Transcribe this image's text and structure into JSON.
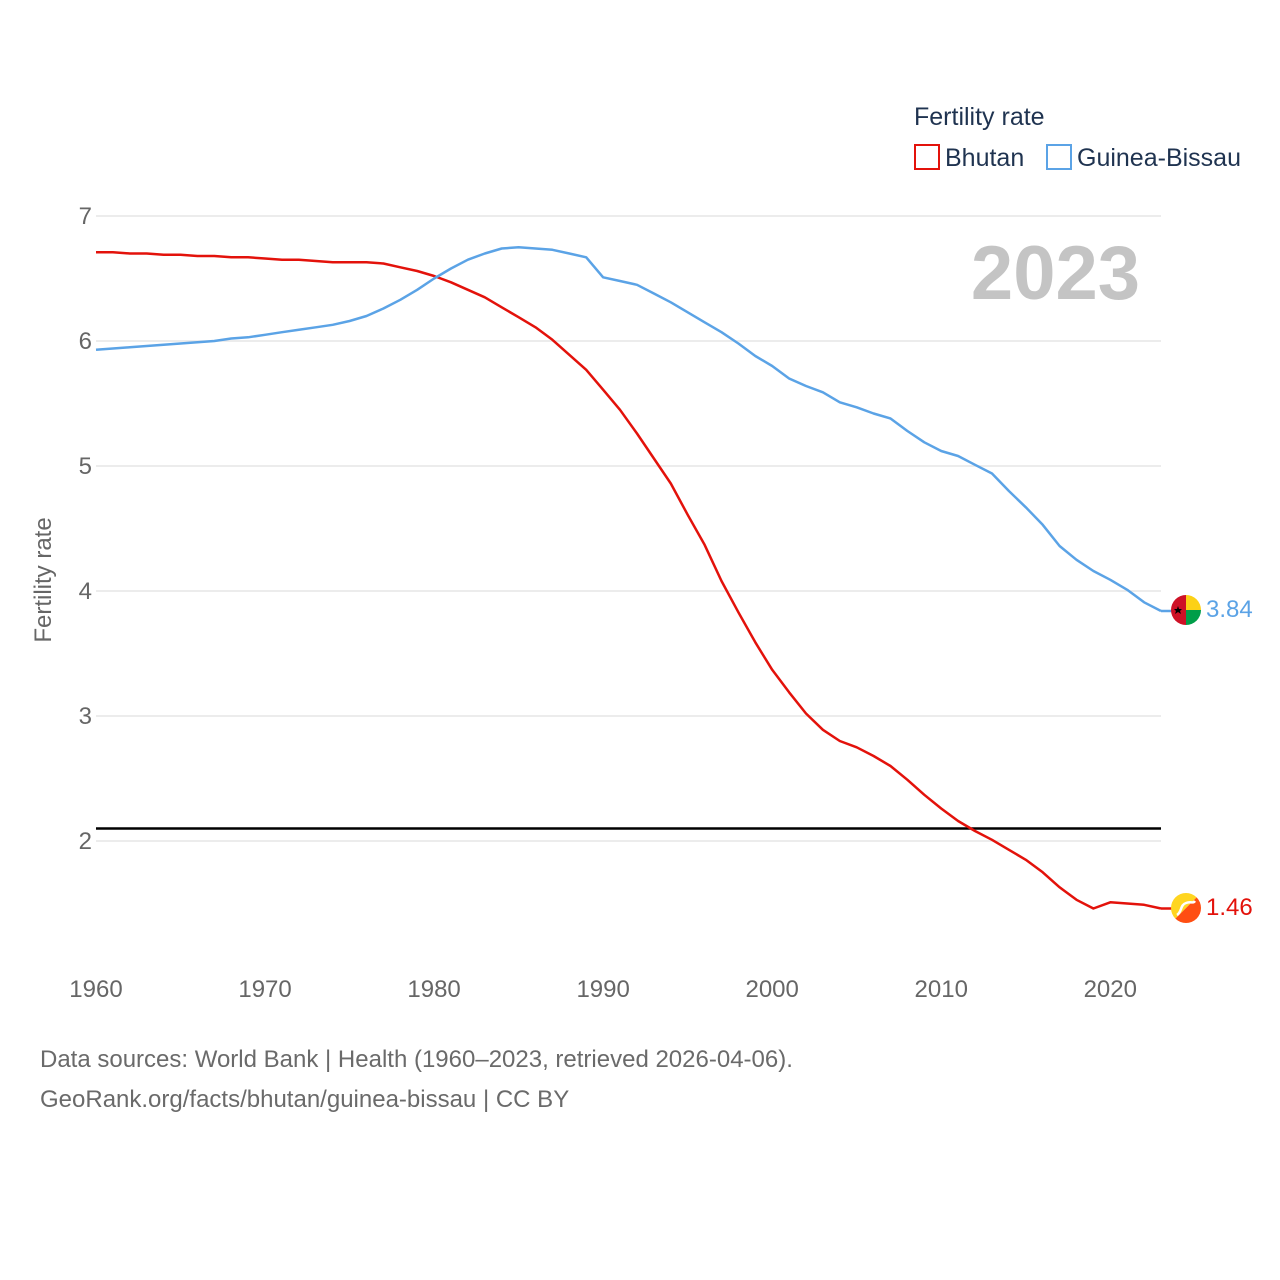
{
  "chart_data": {
    "type": "line",
    "title": "Fertility rate",
    "highlight_year": "2023",
    "xlabel": "",
    "ylabel": "Fertility rate",
    "xlim": [
      1960,
      2023
    ],
    "ylim": [
      1.0,
      7.0
    ],
    "x_ticks": [
      "1960",
      "1970",
      "1980",
      "1990",
      "2000",
      "2010",
      "2020"
    ],
    "y_ticks": [
      "2",
      "3",
      "4",
      "5",
      "6",
      "7"
    ],
    "reference_line": {
      "y": 2.1,
      "color": "#000000"
    },
    "legend_position": "top-right",
    "series": [
      {
        "name": "Bhutan",
        "color": "#e3120b",
        "end_label": "1.46",
        "points": [
          [
            1960,
            6.71
          ],
          [
            1961,
            6.71
          ],
          [
            1962,
            6.7
          ],
          [
            1963,
            6.7
          ],
          [
            1964,
            6.69
          ],
          [
            1965,
            6.69
          ],
          [
            1966,
            6.68
          ],
          [
            1967,
            6.68
          ],
          [
            1968,
            6.67
          ],
          [
            1969,
            6.67
          ],
          [
            1970,
            6.66
          ],
          [
            1971,
            6.65
          ],
          [
            1972,
            6.65
          ],
          [
            1973,
            6.64
          ],
          [
            1974,
            6.63
          ],
          [
            1975,
            6.63
          ],
          [
            1976,
            6.63
          ],
          [
            1977,
            6.62
          ],
          [
            1978,
            6.59
          ],
          [
            1979,
            6.56
          ],
          [
            1980,
            6.52
          ],
          [
            1981,
            6.47
          ],
          [
            1982,
            6.41
          ],
          [
            1983,
            6.35
          ],
          [
            1984,
            6.27
          ],
          [
            1985,
            6.19
          ],
          [
            1986,
            6.11
          ],
          [
            1987,
            6.01
          ],
          [
            1988,
            5.89
          ],
          [
            1989,
            5.77
          ],
          [
            1990,
            5.61
          ],
          [
            1991,
            5.45
          ],
          [
            1992,
            5.26
          ],
          [
            1993,
            5.06
          ],
          [
            1994,
            4.86
          ],
          [
            1995,
            4.61
          ],
          [
            1996,
            4.37
          ],
          [
            1997,
            4.08
          ],
          [
            1998,
            3.83
          ],
          [
            1999,
            3.59
          ],
          [
            2000,
            3.37
          ],
          [
            2001,
            3.19
          ],
          [
            2002,
            3.02
          ],
          [
            2003,
            2.89
          ],
          [
            2004,
            2.8
          ],
          [
            2005,
            2.75
          ],
          [
            2006,
            2.68
          ],
          [
            2007,
            2.6
          ],
          [
            2008,
            2.49
          ],
          [
            2009,
            2.37
          ],
          [
            2010,
            2.26
          ],
          [
            2011,
            2.16
          ],
          [
            2012,
            2.08
          ],
          [
            2013,
            2.01
          ],
          [
            2014,
            1.93
          ],
          [
            2015,
            1.85
          ],
          [
            2016,
            1.75
          ],
          [
            2017,
            1.63
          ],
          [
            2018,
            1.53
          ],
          [
            2019,
            1.46
          ],
          [
            2020,
            1.51
          ],
          [
            2021,
            1.5
          ],
          [
            2022,
            1.49
          ],
          [
            2023,
            1.46
          ]
        ]
      },
      {
        "name": "Guinea-Bissau",
        "color": "#5ba3e6",
        "end_label": "3.84",
        "points": [
          [
            1960,
            5.93
          ],
          [
            1961,
            5.94
          ],
          [
            1962,
            5.95
          ],
          [
            1963,
            5.96
          ],
          [
            1964,
            5.97
          ],
          [
            1965,
            5.98
          ],
          [
            1966,
            5.99
          ],
          [
            1967,
            6.0
          ],
          [
            1968,
            6.02
          ],
          [
            1969,
            6.03
          ],
          [
            1970,
            6.05
          ],
          [
            1971,
            6.07
          ],
          [
            1972,
            6.09
          ],
          [
            1973,
            6.11
          ],
          [
            1974,
            6.13
          ],
          [
            1975,
            6.16
          ],
          [
            1976,
            6.2
          ],
          [
            1977,
            6.26
          ],
          [
            1978,
            6.33
          ],
          [
            1979,
            6.41
          ],
          [
            1980,
            6.5
          ],
          [
            1981,
            6.58
          ],
          [
            1982,
            6.65
          ],
          [
            1983,
            6.7
          ],
          [
            1984,
            6.74
          ],
          [
            1985,
            6.75
          ],
          [
            1986,
            6.74
          ],
          [
            1987,
            6.73
          ],
          [
            1988,
            6.7
          ],
          [
            1989,
            6.67
          ],
          [
            1990,
            6.51
          ],
          [
            1991,
            6.48
          ],
          [
            1992,
            6.45
          ],
          [
            1993,
            6.38
          ],
          [
            1994,
            6.31
          ],
          [
            1995,
            6.23
          ],
          [
            1996,
            6.15
          ],
          [
            1997,
            6.07
          ],
          [
            1998,
            5.98
          ],
          [
            1999,
            5.88
          ],
          [
            2000,
            5.8
          ],
          [
            2001,
            5.7
          ],
          [
            2002,
            5.64
          ],
          [
            2003,
            5.59
          ],
          [
            2004,
            5.51
          ],
          [
            2005,
            5.47
          ],
          [
            2006,
            5.42
          ],
          [
            2007,
            5.38
          ],
          [
            2008,
            5.28
          ],
          [
            2009,
            5.19
          ],
          [
            2010,
            5.12
          ],
          [
            2011,
            5.08
          ],
          [
            2012,
            5.01
          ],
          [
            2013,
            4.94
          ],
          [
            2014,
            4.8
          ],
          [
            2015,
            4.67
          ],
          [
            2016,
            4.53
          ],
          [
            2017,
            4.36
          ],
          [
            2018,
            4.25
          ],
          [
            2019,
            4.16
          ],
          [
            2020,
            4.09
          ],
          [
            2021,
            4.01
          ],
          [
            2022,
            3.91
          ],
          [
            2023,
            3.84
          ]
        ]
      }
    ]
  },
  "footer": {
    "sources": "Data sources: World Bank | Health (1960–2023, retrieved 2026-04-06).",
    "credit": "GeoRank.org/facts/bhutan/guinea-bissau | CC BY"
  }
}
